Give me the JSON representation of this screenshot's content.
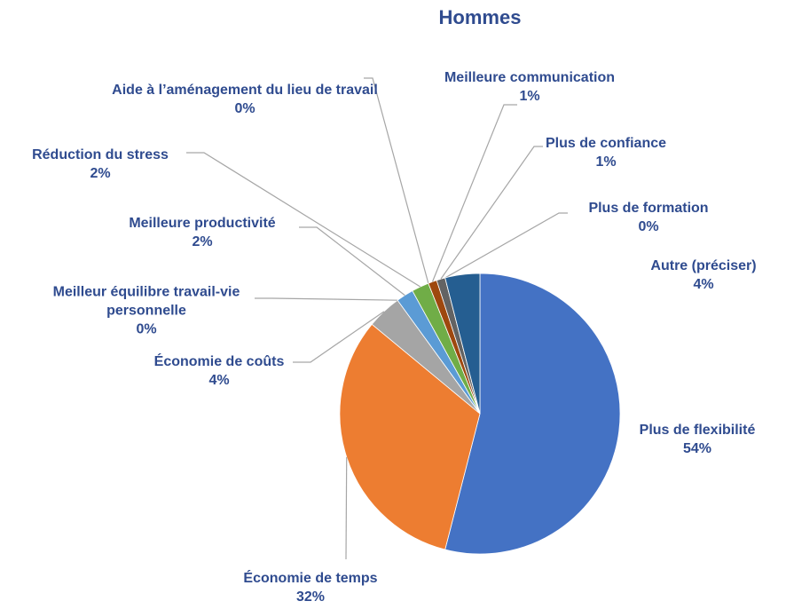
{
  "chart_data": {
    "type": "pie",
    "title": "Hommes",
    "categories": [
      "Plus de flexibilité",
      "Économie de temps",
      "Économie de coûts",
      "Meilleur équilibre travail-vie personnelle",
      "Meilleure productivité",
      "Réduction du stress",
      "Aide à l’aménagement du lieu de travail",
      "Meilleure communication",
      "Plus de confiance",
      "Plus de formation",
      "Autre (préciser)"
    ],
    "values": [
      54,
      32,
      4,
      0,
      2,
      2,
      0,
      1,
      1,
      0,
      4
    ],
    "value_labels": [
      "54%",
      "32%",
      "4%",
      "0%",
      "2%",
      "2%",
      "0%",
      "1%",
      "1%",
      "0%",
      "4%"
    ],
    "colors": [
      "#4472c4",
      "#ed7d31",
      "#a5a5a5",
      "#ffc000",
      "#5b9bd5",
      "#70ad47",
      "#264478",
      "#9e480e",
      "#636363",
      "#997300",
      "#255e91"
    ]
  }
}
